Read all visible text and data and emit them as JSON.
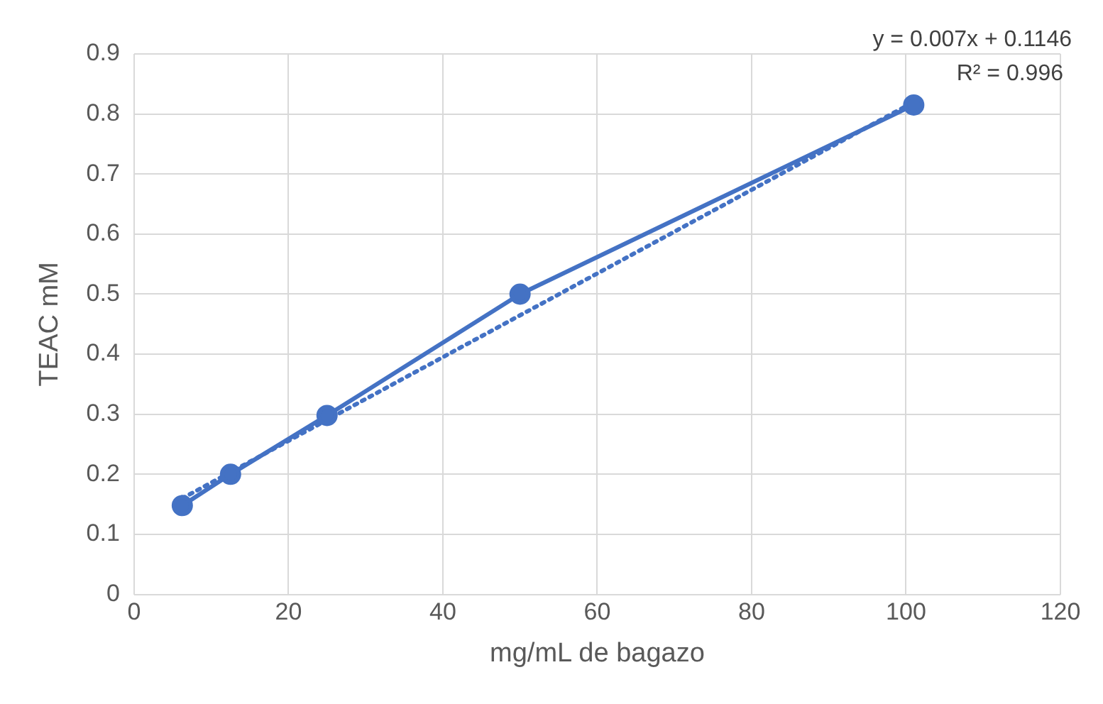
{
  "chart_data": {
    "type": "line",
    "xlabel": "mg/mL de bagazo",
    "ylabel": "TEAC mM",
    "xlim": [
      0,
      120
    ],
    "xticks": [
      0,
      20,
      40,
      60,
      80,
      100,
      120
    ],
    "ylim": [
      0,
      0.9
    ],
    "yticks": [
      0,
      0.1,
      0.2,
      0.3,
      0.4,
      0.5,
      0.6,
      0.7,
      0.8,
      0.9
    ],
    "grid": true,
    "legend": false,
    "marker": "circle",
    "line_style": "solid",
    "annotations": [
      "y = 0.007x + 0.1146",
      "R² = 0.996"
    ],
    "series": [
      {
        "color": "#4472c4",
        "x": [
          6.25,
          12.5,
          25,
          50,
          101
        ],
        "values": [
          0.148,
          0.2,
          0.298,
          0.5,
          0.815
        ]
      },
      {
        "color": "#4472c4",
        "x": [
          6.25,
          101
        ],
        "values": [
          0.16,
          0.82
        ],
        "marker": "none",
        "line_style": "dotted"
      }
    ]
  }
}
